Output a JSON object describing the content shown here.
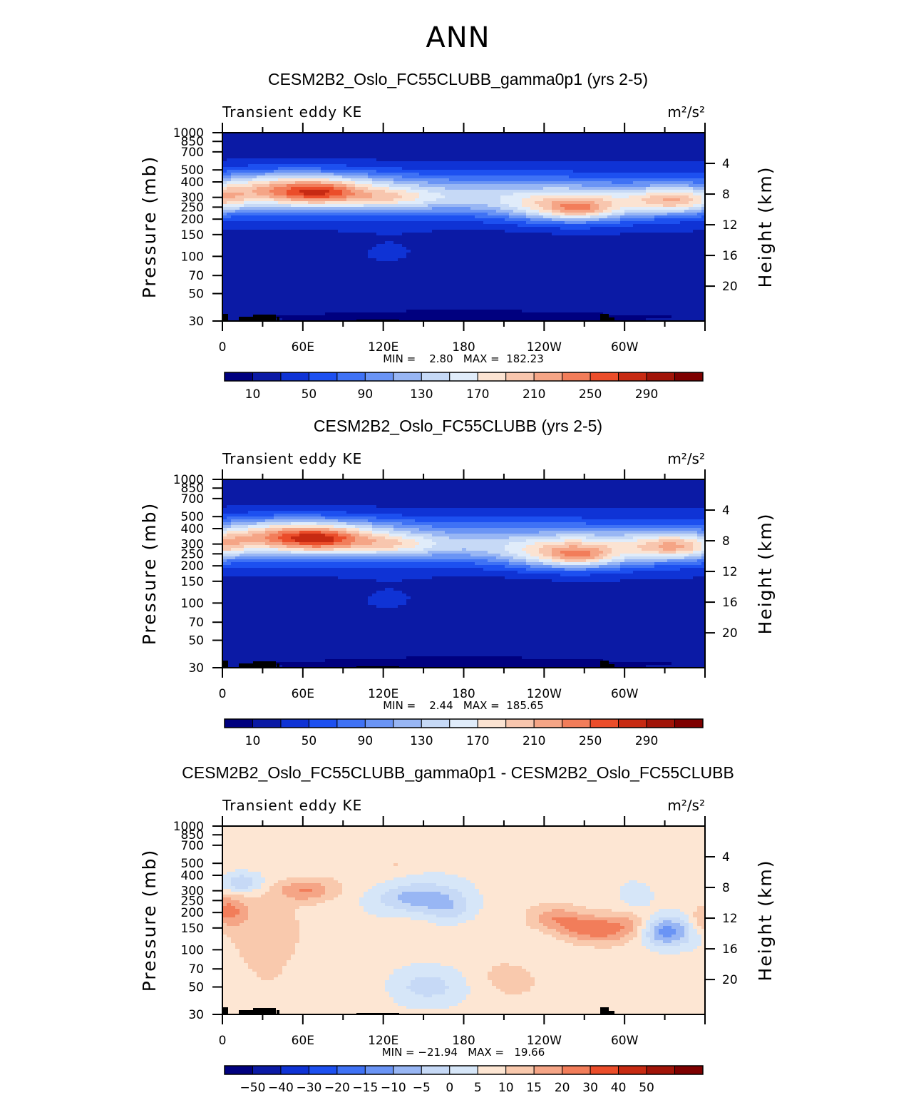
{
  "page_title": "ANN",
  "colors": {
    "abs_scale": [
      "#00007f",
      "#0b1aa5",
      "#0f33d5",
      "#1d50f0",
      "#3f72f5",
      "#6a94f5",
      "#98b6f4",
      "#c6d9f6",
      "#e0ecfa",
      "#fbe3d2",
      "#f8c6ae",
      "#f5a586",
      "#f27d5a",
      "#eb4d2a",
      "#c72a12",
      "#a11408",
      "#7e0000"
    ],
    "diff_scale": [
      "#00007f",
      "#0b1aa5",
      "#0f33d5",
      "#1d50f0",
      "#3f72f5",
      "#6a94f5",
      "#98b6f4",
      "#c6d9f6",
      "#d6e6f8",
      "#fde6d3",
      "#f9c9ad",
      "#f5a586",
      "#f27d5a",
      "#eb4d2a",
      "#c72a12",
      "#a11408",
      "#7e0000"
    ]
  },
  "chart_data": [
    {
      "type": "heatmap",
      "title": "CESM2B2_Oslo_FC55CLUBB_gamma0p1 (yrs 2-5)",
      "left_label": "Transient eddy KE",
      "units": "m²/s²",
      "ylabel": "Pressure (mb)",
      "y2label": "Height (km)",
      "x_ticks": [
        "0",
        "60E",
        "120E",
        "180",
        "120W",
        "60W"
      ],
      "y_ticks": [
        "30",
        "50",
        "70",
        "100",
        "150",
        "200",
        "250",
        "300",
        "400",
        "500",
        "700",
        "850",
        "1000"
      ],
      "y2_ticks": [
        "20",
        "16",
        "12",
        "8",
        "4"
      ],
      "stats": "MIN =    2.80   MAX =  182.23",
      "min": 2.8,
      "max": 182.23,
      "colorbar_labels": [
        "10",
        "50",
        "90",
        "130",
        "170",
        "210",
        "250",
        "290"
      ],
      "levels": [
        10,
        30,
        50,
        70,
        90,
        110,
        130,
        150,
        170,
        190,
        210,
        230,
        250,
        270,
        290,
        310
      ]
    },
    {
      "type": "heatmap",
      "title": "CESM2B2_Oslo_FC55CLUBB (yrs 2-5)",
      "left_label": "Transient eddy KE",
      "units": "m²/s²",
      "ylabel": "Pressure (mb)",
      "y2label": "Height (km)",
      "x_ticks": [
        "0",
        "60E",
        "120E",
        "180",
        "120W",
        "60W"
      ],
      "y_ticks": [
        "30",
        "50",
        "70",
        "100",
        "150",
        "200",
        "250",
        "300",
        "400",
        "500",
        "700",
        "850",
        "1000"
      ],
      "y2_ticks": [
        "20",
        "16",
        "12",
        "8",
        "4"
      ],
      "stats": "MIN =    2.44   MAX =  185.65",
      "min": 2.44,
      "max": 185.65,
      "colorbar_labels": [
        "10",
        "50",
        "90",
        "130",
        "170",
        "210",
        "250",
        "290"
      ],
      "levels": [
        10,
        30,
        50,
        70,
        90,
        110,
        130,
        150,
        170,
        190,
        210,
        230,
        250,
        270,
        290,
        310
      ]
    },
    {
      "type": "heatmap",
      "title": "CESM2B2_Oslo_FC55CLUBB_gamma0p1 - CESM2B2_Oslo_FC55CLUBB",
      "left_label": "Transient eddy KE",
      "units": "m²/s²",
      "ylabel": "Pressure (mb)",
      "y2label": "Height (km)",
      "x_ticks": [
        "0",
        "60E",
        "120E",
        "180",
        "120W",
        "60W"
      ],
      "y_ticks": [
        "30",
        "50",
        "70",
        "100",
        "150",
        "200",
        "250",
        "300",
        "400",
        "500",
        "700",
        "850",
        "1000"
      ],
      "y2_ticks": [
        "20",
        "16",
        "12",
        "8",
        "4"
      ],
      "stats": "MIN = −21.94   MAX =   19.66",
      "min": -21.94,
      "max": 19.66,
      "colorbar_labels": [
        "−50",
        "−40",
        "−30",
        "−20",
        "−15",
        "−10",
        "−5",
        "0",
        "5",
        "10",
        "15",
        "20",
        "30",
        "40",
        "50"
      ],
      "levels": [
        -50,
        -40,
        -30,
        -20,
        -15,
        -10,
        -5,
        0,
        5,
        10,
        15,
        20,
        30,
        40,
        50
      ]
    }
  ]
}
